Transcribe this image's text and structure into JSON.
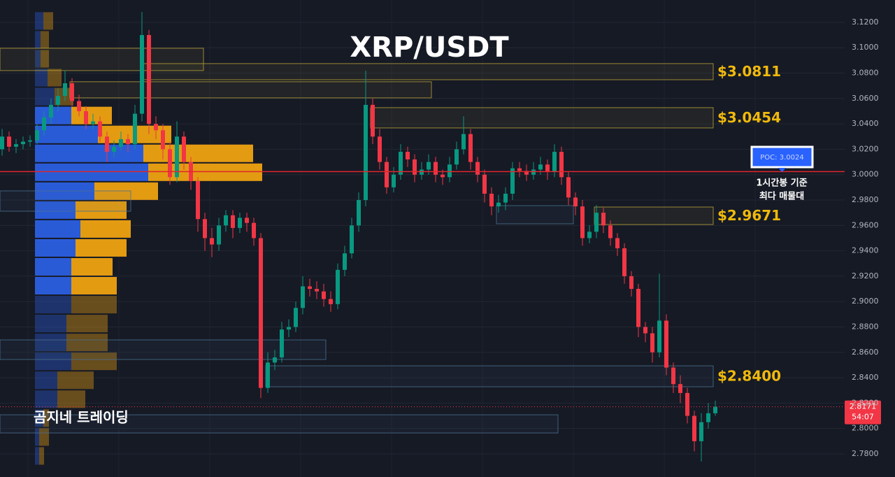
{
  "chart_data": {
    "type": "candlestick",
    "title": "XRP/USDT",
    "watermark": "곰지네 트레이딩",
    "ylim": [
      2.7618,
      3.1376
    ],
    "yticks": [
      {
        "value": 2.78,
        "label": "2.7800"
      },
      {
        "value": 2.8,
        "label": "2.8000"
      },
      {
        "value": 2.82,
        "label": "2.8200"
      },
      {
        "value": 2.84,
        "label": "2.8400"
      },
      {
        "value": 2.86,
        "label": "2.8600"
      },
      {
        "value": 2.88,
        "label": "2.8800"
      },
      {
        "value": 2.9,
        "label": "2.9000"
      },
      {
        "value": 2.92,
        "label": "2.9200"
      },
      {
        "value": 2.94,
        "label": "2.9400"
      },
      {
        "value": 2.96,
        "label": "2.9600"
      },
      {
        "value": 2.98,
        "label": "2.9800"
      },
      {
        "value": 3.0,
        "label": "3.0000"
      },
      {
        "value": 3.02,
        "label": "3.0200"
      },
      {
        "value": 3.04,
        "label": "3.0400"
      },
      {
        "value": 3.06,
        "label": "3.0600"
      },
      {
        "value": 3.08,
        "label": "3.0800"
      },
      {
        "value": 3.1,
        "label": "3.1000"
      },
      {
        "value": 3.12,
        "label": "3.1200"
      }
    ],
    "grid": true,
    "up_color": "#089981",
    "down_color": "#f23645",
    "candles": [
      [
        3.02,
        3.036,
        3.015,
        3.03
      ],
      [
        3.03,
        3.034,
        3.018,
        3.022
      ],
      [
        3.022,
        3.028,
        3.017,
        3.024
      ],
      [
        3.024,
        3.03,
        3.02,
        3.026
      ],
      [
        3.026,
        3.031,
        3.022,
        3.027
      ],
      [
        3.027,
        3.04,
        3.024,
        3.035
      ],
      [
        3.035,
        3.05,
        3.031,
        3.045
      ],
      [
        3.045,
        3.06,
        3.04,
        3.055
      ],
      [
        3.055,
        3.068,
        3.05,
        3.062
      ],
      [
        3.062,
        3.082,
        3.058,
        3.072
      ],
      [
        3.072,
        3.076,
        3.054,
        3.058
      ],
      [
        3.058,
        3.063,
        3.046,
        3.05
      ],
      [
        3.05,
        3.054,
        3.036,
        3.04
      ],
      [
        3.04,
        3.048,
        3.036,
        3.042
      ],
      [
        3.042,
        3.046,
        3.026,
        3.03
      ],
      [
        3.03,
        3.034,
        3.01,
        3.018
      ],
      [
        3.018,
        3.027,
        3.014,
        3.022
      ],
      [
        3.022,
        3.034,
        3.019,
        3.028
      ],
      [
        3.028,
        3.032,
        3.018,
        3.024
      ],
      [
        3.024,
        3.055,
        3.02,
        3.048
      ],
      [
        3.048,
        3.128,
        3.042,
        3.11
      ],
      [
        3.11,
        3.114,
        3.032,
        3.04
      ],
      [
        3.04,
        3.046,
        3.028,
        3.035
      ],
      [
        3.035,
        3.04,
        3.012,
        3.02
      ],
      [
        3.02,
        3.026,
        2.992,
        2.998
      ],
      [
        2.998,
        3.042,
        2.994,
        3.03
      ],
      [
        3.03,
        3.034,
        3.004,
        3.01
      ],
      [
        3.01,
        3.014,
        2.988,
        2.995
      ],
      [
        2.995,
        2.998,
        2.955,
        2.965
      ],
      [
        2.965,
        2.97,
        2.94,
        2.95
      ],
      [
        2.95,
        2.958,
        2.935,
        2.945
      ],
      [
        2.945,
        2.966,
        2.94,
        2.96
      ],
      [
        2.96,
        2.972,
        2.955,
        2.968
      ],
      [
        2.968,
        2.972,
        2.95,
        2.958
      ],
      [
        2.958,
        2.97,
        2.954,
        2.966
      ],
      [
        2.966,
        2.97,
        2.955,
        2.962
      ],
      [
        2.962,
        2.966,
        2.944,
        2.95
      ],
      [
        2.95,
        2.954,
        2.824,
        2.832
      ],
      [
        2.832,
        2.86,
        2.828,
        2.852
      ],
      [
        2.852,
        2.862,
        2.846,
        2.856
      ],
      [
        2.856,
        2.884,
        2.852,
        2.878
      ],
      [
        2.878,
        2.886,
        2.872,
        2.88
      ],
      [
        2.88,
        2.9,
        2.876,
        2.895
      ],
      [
        2.895,
        2.92,
        2.89,
        2.912
      ],
      [
        2.912,
        2.918,
        2.904,
        2.91
      ],
      [
        2.91,
        2.916,
        2.902,
        2.908
      ],
      [
        2.908,
        2.914,
        2.896,
        2.902
      ],
      [
        2.902,
        2.908,
        2.892,
        2.898
      ],
      [
        2.898,
        2.93,
        2.894,
        2.925
      ],
      [
        2.925,
        2.944,
        2.92,
        2.938
      ],
      [
        2.938,
        2.966,
        2.934,
        2.96
      ],
      [
        2.96,
        2.986,
        2.955,
        2.98
      ],
      [
        2.98,
        3.082,
        2.975,
        3.055
      ],
      [
        3.055,
        3.06,
        3.024,
        3.03
      ],
      [
        3.03,
        3.036,
        3.004,
        3.01
      ],
      [
        3.01,
        3.014,
        2.985,
        2.99
      ],
      [
        2.99,
        3.006,
        2.986,
        3.0
      ],
      [
        3.0,
        3.024,
        2.996,
        3.018
      ],
      [
        3.018,
        3.022,
        3.006,
        3.012
      ],
      [
        3.012,
        3.016,
        2.994,
        3.0
      ],
      [
        3.0,
        3.01,
        2.996,
        3.004
      ],
      [
        3.004,
        3.016,
        3.0,
        3.01
      ],
      [
        3.01,
        3.014,
        2.994,
        3.0
      ],
      [
        3.0,
        3.004,
        2.992,
        2.998
      ],
      [
        2.998,
        3.014,
        2.994,
        3.008
      ],
      [
        3.008,
        3.026,
        3.004,
        3.02
      ],
      [
        3.02,
        3.046,
        3.016,
        3.032
      ],
      [
        3.032,
        3.036,
        3.004,
        3.01
      ],
      [
        3.01,
        3.014,
        2.994,
        3.0
      ],
      [
        3.0,
        3.004,
        2.978,
        2.985
      ],
      [
        2.985,
        2.99,
        2.968,
        2.975
      ],
      [
        2.975,
        2.984,
        2.97,
        2.978
      ],
      [
        2.978,
        2.99,
        2.972,
        2.985
      ],
      [
        2.985,
        3.01,
        2.98,
        3.005
      ],
      [
        3.005,
        3.01,
        2.998,
        3.003
      ],
      [
        3.003,
        3.008,
        2.995,
        3.0
      ],
      [
        3.0,
        3.01,
        2.996,
        3.004
      ],
      [
        3.004,
        3.014,
        3.0,
        3.008
      ],
      [
        3.008,
        3.012,
        2.996,
        3.002
      ],
      [
        3.002,
        3.024,
        2.998,
        3.018
      ],
      [
        3.018,
        3.022,
        2.992,
        2.998
      ],
      [
        2.998,
        3.002,
        2.976,
        2.982
      ],
      [
        2.982,
        2.986,
        2.968,
        2.975
      ],
      [
        2.975,
        2.98,
        2.944,
        2.95
      ],
      [
        2.95,
        2.96,
        2.946,
        2.955
      ],
      [
        2.955,
        2.976,
        2.95,
        2.97
      ],
      [
        2.97,
        2.974,
        2.954,
        2.96
      ],
      [
        2.96,
        2.964,
        2.944,
        2.95
      ],
      [
        2.95,
        2.954,
        2.936,
        2.942
      ],
      [
        2.942,
        2.946,
        2.914,
        2.92
      ],
      [
        2.92,
        2.924,
        2.904,
        2.91
      ],
      [
        2.91,
        2.914,
        2.872,
        2.88
      ],
      [
        2.88,
        2.884,
        2.868,
        2.875
      ],
      [
        2.875,
        2.88,
        2.852,
        2.86
      ],
      [
        2.86,
        2.922,
        2.856,
        2.885
      ],
      [
        2.885,
        2.89,
        2.842,
        2.848
      ],
      [
        2.848,
        2.852,
        2.828,
        2.835
      ],
      [
        2.835,
        2.842,
        2.82,
        2.828
      ],
      [
        2.828,
        2.832,
        2.804,
        2.81
      ],
      [
        2.81,
        2.814,
        2.782,
        2.79
      ],
      [
        2.79,
        2.812,
        2.774,
        2.805
      ],
      [
        2.805,
        2.82,
        2.8,
        2.812
      ],
      [
        2.812,
        2.822,
        2.81,
        2.8171
      ]
    ],
    "profile": {
      "levels": [
        3.1211,
        3.1062,
        3.0913,
        3.0764,
        3.0615,
        3.0466,
        3.0317,
        3.0168,
        3.0019,
        2.987,
        2.9721,
        2.9572,
        2.9423,
        2.9274,
        2.9125,
        2.8976,
        2.8827,
        2.8678,
        2.8529,
        2.838,
        2.8231,
        2.8082,
        2.7933,
        2.7784
      ],
      "buy": [
        12,
        8,
        8,
        18,
        28,
        52,
        90,
        155,
        162,
        85,
        58,
        65,
        58,
        52,
        52,
        52,
        45,
        45,
        52,
        32,
        32,
        12,
        6,
        6
      ],
      "sell": [
        14,
        12,
        12,
        20,
        27,
        58,
        105,
        157,
        163,
        91,
        73,
        72,
        73,
        59,
        65,
        65,
        59,
        59,
        65,
        52,
        40,
        8,
        14,
        7
      ],
      "buy_color": "#2a5bd7",
      "sell_color": "#e39b12",
      "value_area_low": 2.9125,
      "value_area_high": 3.0466
    },
    "zones": [
      {
        "top": 3.0996,
        "bottom": 3.082,
        "color": "#b8a23a"
      },
      {
        "top": 3.0875,
        "bottom": 3.0748,
        "color": "#b8a23a",
        "label": "$3.0811"
      },
      {
        "top": 3.0732,
        "bottom": 3.0605,
        "color": "#b8a23a"
      },
      {
        "top": 3.0528,
        "bottom": 3.0368,
        "color": "#b8a23a",
        "label": "$3.0454"
      },
      {
        "top": 2.9872,
        "bottom": 2.9712,
        "color": "#4a7090"
      },
      {
        "top": 2.9756,
        "bottom": 2.9613,
        "color": "#4a7090"
      },
      {
        "top": 2.9745,
        "bottom": 2.9607,
        "color": "#b8a23a",
        "label": "$2.9671"
      },
      {
        "top": 2.8698,
        "bottom": 2.8544,
        "color": "#4a7090"
      },
      {
        "top": 2.8494,
        "bottom": 2.8329,
        "color": "#4a7090",
        "label": "$2.8400"
      },
      {
        "top": 2.8108,
        "bottom": 2.7965,
        "color": "#4a7090"
      }
    ],
    "poc": 3.0024,
    "poc_label": "POC: 3.0024",
    "poc_note": [
      "1시간봉 기준",
      "최다 매물대"
    ],
    "last_price": 2.8171,
    "countdown": "54:07"
  }
}
